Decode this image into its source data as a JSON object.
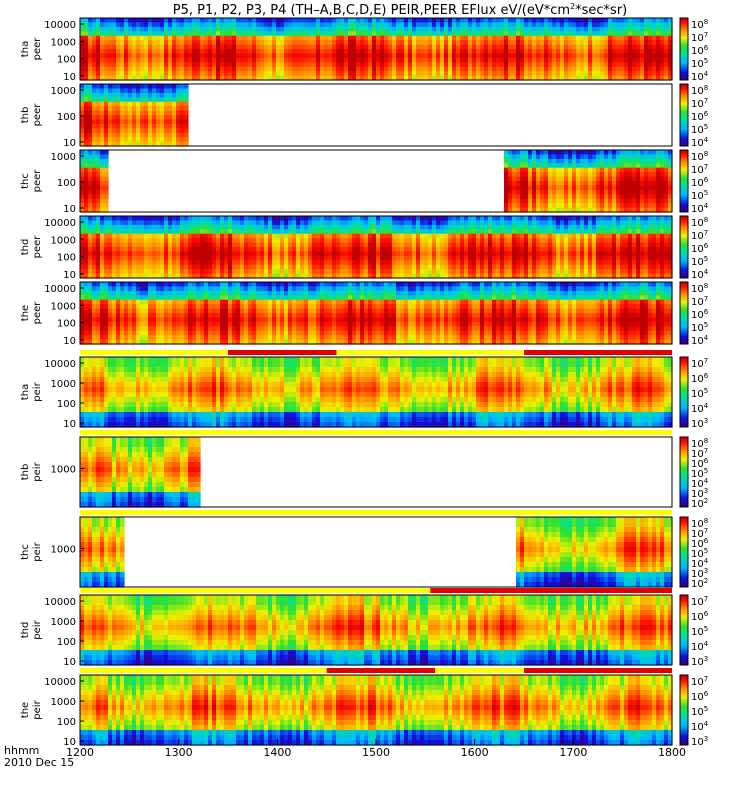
{
  "chart_data": {
    "type": "heatmap",
    "title": "P5, P1, P2, P3, P4 (TH–A,B,C,D,E) PEIR,PEER EFlux eV/(eV*cm",
    "title_sup": "2",
    "title_tail": "*sec*sr)",
    "x_axis": {
      "label": "hhmm",
      "date": "2010 Dec 15",
      "ticks": [
        "1200",
        "1300",
        "1400",
        "1500",
        "1600",
        "1700",
        "1800"
      ],
      "range": [
        1200,
        1800
      ]
    },
    "panels": [
      {
        "probe": "tha",
        "product": "peer",
        "yticks": [
          "10000",
          "1000",
          "100",
          "10"
        ],
        "cbar": [
          "10^8",
          "10^7",
          "10^6",
          "10^5",
          "10^4"
        ],
        "cbar_range": [
          4,
          8
        ],
        "data_intervals": [
          [
            1200,
            1800
          ]
        ],
        "mode_bars": [],
        "kind": "peer"
      },
      {
        "probe": "thb",
        "product": "peer",
        "yticks": [
          "1000",
          "100",
          "10"
        ],
        "cbar": [
          "10^8",
          "10^7",
          "10^6",
          "10^5",
          "10^4"
        ],
        "cbar_range": [
          4,
          8
        ],
        "data_intervals": [
          [
            1200,
            1310
          ]
        ],
        "mode_bars": [],
        "kind": "peer"
      },
      {
        "probe": "thc",
        "product": "peer",
        "yticks": [
          "1000",
          "100",
          "10"
        ],
        "cbar": [
          "10^8",
          "10^7",
          "10^6",
          "10^5",
          "10^4"
        ],
        "cbar_range": [
          4,
          8
        ],
        "data_intervals": [
          [
            1200,
            1230
          ],
          [
            1630,
            1800
          ]
        ],
        "mode_bars": [],
        "kind": "peer"
      },
      {
        "probe": "thd",
        "product": "peer",
        "yticks": [
          "10000",
          "1000",
          "100",
          "10"
        ],
        "cbar": [
          "10^8",
          "10^7",
          "10^6",
          "10^5",
          "10^4"
        ],
        "cbar_range": [
          4,
          8
        ],
        "data_intervals": [
          [
            1200,
            1800
          ]
        ],
        "mode_bars": [],
        "kind": "peer"
      },
      {
        "probe": "the",
        "product": "peer",
        "yticks": [
          "10000",
          "1000",
          "100",
          "10"
        ],
        "cbar": [
          "10^8",
          "10^7",
          "10^6",
          "10^5",
          "10^4"
        ],
        "cbar_range": [
          4,
          8
        ],
        "data_intervals": [
          [
            1200,
            1800
          ]
        ],
        "mode_bars": [],
        "kind": "peer"
      },
      {
        "probe": "tha",
        "product": "peir",
        "yticks": [
          "10000",
          "1000",
          "100",
          "10"
        ],
        "cbar": [
          "10^7",
          "10^6",
          "10^5",
          "10^4",
          "10^3"
        ],
        "cbar_range": [
          3,
          7
        ],
        "data_intervals": [
          [
            1200,
            1800
          ]
        ],
        "mode_bars": [
          [
            1200,
            1800,
            "yellow"
          ],
          [
            1350,
            1460,
            "red"
          ],
          [
            1650,
            1800,
            "red"
          ]
        ],
        "kind": "peir"
      },
      {
        "probe": "thb",
        "product": "peir",
        "yticks": [
          "1000"
        ],
        "cbar": [
          "10^8",
          "10^7",
          "10^6",
          "10^5",
          "10^4",
          "10^3",
          "10^2"
        ],
        "cbar_range": [
          2,
          8
        ],
        "data_intervals": [
          [
            1200,
            1320
          ]
        ],
        "mode_bars": [
          [
            1200,
            1800,
            "yellow"
          ]
        ],
        "kind": "peir"
      },
      {
        "probe": "thc",
        "product": "peir",
        "yticks": [
          "1000"
        ],
        "cbar": [
          "10^8",
          "10^7",
          "10^6",
          "10^5",
          "10^4",
          "10^3",
          "10^2"
        ],
        "cbar_range": [
          2,
          8
        ],
        "data_intervals": [
          [
            1200,
            1245
          ],
          [
            1642,
            1800
          ]
        ],
        "mode_bars": [
          [
            1200,
            1800,
            "yellow"
          ]
        ],
        "kind": "peir"
      },
      {
        "probe": "thd",
        "product": "peir",
        "yticks": [
          "10000",
          "1000",
          "100",
          "10"
        ],
        "cbar": [
          "10^7",
          "10^6",
          "10^5",
          "10^4",
          "10^3"
        ],
        "cbar_range": [
          3,
          7
        ],
        "data_intervals": [
          [
            1200,
            1800
          ]
        ],
        "mode_bars": [
          [
            1200,
            1555,
            "yellow"
          ],
          [
            1555,
            1800,
            "red"
          ]
        ],
        "kind": "peir"
      },
      {
        "probe": "the",
        "product": "peir",
        "yticks": [
          "10000",
          "1000",
          "100",
          "10"
        ],
        "cbar": [
          "10^7",
          "10^6",
          "10^5",
          "10^4",
          "10^3"
        ],
        "cbar_range": [
          3,
          7
        ],
        "data_intervals": [
          [
            1200,
            1800
          ]
        ],
        "mode_bars": [
          [
            1200,
            1450,
            "yellow"
          ],
          [
            1450,
            1560,
            "red"
          ],
          [
            1560,
            1650,
            "yellow"
          ],
          [
            1650,
            1800,
            "red"
          ]
        ],
        "kind": "peir"
      }
    ]
  }
}
